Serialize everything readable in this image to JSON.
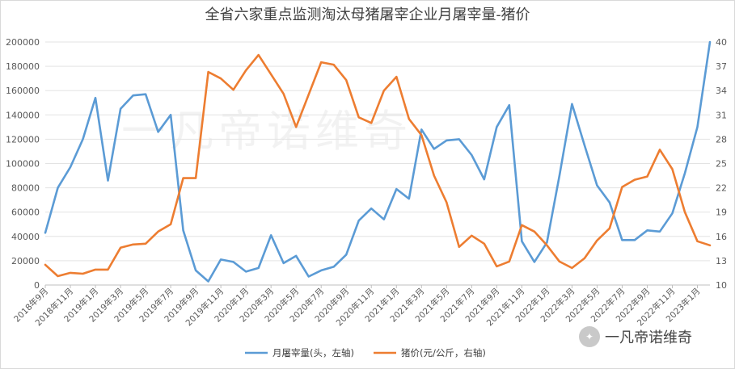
{
  "chart_data": {
    "type": "line",
    "title": "全省六家重点监测淘汰母猪屠宰企业月屠宰量-猪价",
    "x": [
      "2018年9月",
      "2018年10月",
      "2018年11月",
      "2018年12月",
      "2019年1月",
      "2019年2月",
      "2019年3月",
      "2019年4月",
      "2019年5月",
      "2019年6月",
      "2019年7月",
      "2019年8月",
      "2019年9月",
      "2019年10月",
      "2019年11月",
      "2019年12月",
      "2020年1月",
      "2020年2月",
      "2020年3月",
      "2020年4月",
      "2020年5月",
      "2020年6月",
      "2020年7月",
      "2020年8月",
      "2020年9月",
      "2020年10月",
      "2020年11月",
      "2020年12月",
      "2021年1月",
      "2021年2月",
      "2021年3月",
      "2021年4月",
      "2021年5月",
      "2021年6月",
      "2021年7月",
      "2021年8月",
      "2021年9月",
      "2021年10月",
      "2021年11月",
      "2021年12月",
      "2022年1月",
      "2022年2月",
      "2022年3月",
      "2022年4月",
      "2022年5月",
      "2022年6月",
      "2022年7月",
      "2022年8月",
      "2022年9月",
      "2022年10月",
      "2022年11月",
      "2022年12月",
      "2023年1月",
      "2023年2月"
    ],
    "x_tick_labels": [
      "2018年9月",
      "2018年11月",
      "2019年1月",
      "2019年3月",
      "2019年5月",
      "2019年7月",
      "2019年9月",
      "2019年11月",
      "2020年1月",
      "2020年3月",
      "2020年5月",
      "2020年7月",
      "2020年9月",
      "2020年11月",
      "2021年1月",
      "2021年3月",
      "2021年5月",
      "2021年7月",
      "2021年9月",
      "2021年11月",
      "2022年1月",
      "2022年3月",
      "2022年5月",
      "2022年7月",
      "2022年9月",
      "2022年11月",
      "2023年1月"
    ],
    "y_left": {
      "ylim": [
        0,
        200000
      ],
      "ticks": [
        "0",
        "20000",
        "40000",
        "60000",
        "80000",
        "100000",
        "120000",
        "140000",
        "160000",
        "180000",
        "200000"
      ]
    },
    "y_right": {
      "ylim": [
        10,
        40
      ],
      "ticks": [
        "10",
        "13",
        "16",
        "19",
        "22",
        "25",
        "28",
        "31",
        "34",
        "37",
        "40"
      ]
    },
    "grid": true,
    "legend_position": "bottom",
    "series": [
      {
        "name": "月屠宰量(头，左轴)",
        "axis": "left",
        "color": "#5b9bd5",
        "values": [
          43000,
          80000,
          97000,
          120000,
          154000,
          86000,
          145000,
          156000,
          157000,
          126000,
          140000,
          45000,
          12000,
          3000,
          21000,
          19000,
          11000,
          14000,
          41000,
          18000,
          24000,
          7000,
          12000,
          15000,
          25000,
          53000,
          63000,
          54000,
          79000,
          71000,
          128000,
          112000,
          119000,
          120000,
          107000,
          87000,
          130000,
          148000,
          36000,
          19000,
          35000,
          90000,
          149000,
          115000,
          82000,
          68000,
          37000,
          37000,
          45000,
          44000,
          59000,
          92000,
          130000,
          200000
        ]
      },
      {
        "name": "猪价(元/公斤，右轴)",
        "axis": "right",
        "color": "#ed7d31",
        "values": [
          12.5,
          11.1,
          11.5,
          11.4,
          11.9,
          11.9,
          14.6,
          15.0,
          15.1,
          16.6,
          17.5,
          23.2,
          23.2,
          36.3,
          35.5,
          34.1,
          36.5,
          38.4,
          36.0,
          33.6,
          29.5,
          33.5,
          37.5,
          37.2,
          35.3,
          30.7,
          30.0,
          34.0,
          35.7,
          30.5,
          28.5,
          23.5,
          20.2,
          14.7,
          16.1,
          15.1,
          12.3,
          12.9,
          17.4,
          16.6,
          14.9,
          12.9,
          12.1,
          13.3,
          15.5,
          17.0,
          22.1,
          23.0,
          23.4,
          26.7,
          24.3,
          19.0,
          15.4,
          14.9
        ]
      }
    ]
  },
  "watermark": {
    "background_text": "一凡帝诺维奇",
    "logo_text": "一凡帝诺维奇"
  }
}
